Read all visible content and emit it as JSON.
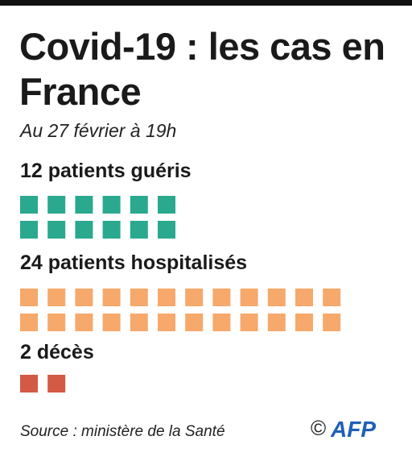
{
  "title": "Covid-19 : les cas en France",
  "subtitle": "Au 27 février à 19h",
  "source": "Source : ministère de la Santé",
  "credit": {
    "copyright_symbol": "©",
    "logo": "AFP"
  },
  "colors": {
    "gueris": "#2aa98e",
    "hospitalises": "#f6a96b",
    "deces": "#d35a45",
    "logo": "#1f5fb8"
  },
  "chart_data": {
    "type": "waffle",
    "categories": [
      {
        "label": "12 patients guéris",
        "count": 12,
        "per_row": 6,
        "color": "#2aa98e"
      },
      {
        "label": "24 patients hospitalisés",
        "count": 24,
        "per_row": 12,
        "color": "#f6a96b"
      },
      {
        "label": "2 décès",
        "count": 2,
        "per_row": 12,
        "color": "#d35a45"
      }
    ]
  }
}
